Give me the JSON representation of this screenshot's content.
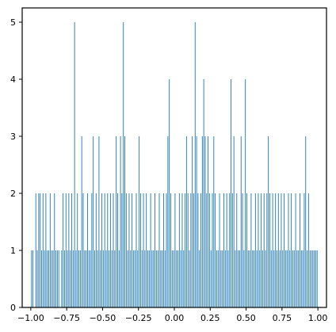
{
  "chart_data": {
    "type": "bar",
    "title": "",
    "xlabel": "",
    "ylabel": "",
    "xlim": [
      -1.06,
      1.06
    ],
    "ylim": [
      0,
      5.25
    ],
    "grid": false,
    "bar_color": "#1f77b4",
    "x_ticks": [
      {
        "value": -1.0,
        "label": "−1.00"
      },
      {
        "value": -0.75,
        "label": "−0.75"
      },
      {
        "value": -0.5,
        "label": "−0.50"
      },
      {
        "value": -0.25,
        "label": "−0.25"
      },
      {
        "value": 0.0,
        "label": "0.00"
      },
      {
        "value": 0.25,
        "label": "0.25"
      },
      {
        "value": 0.5,
        "label": "0.50"
      },
      {
        "value": 0.75,
        "label": "0.75"
      },
      {
        "value": 1.0,
        "label": "1.00"
      }
    ],
    "y_ticks": [
      {
        "value": 0,
        "label": "0"
      },
      {
        "value": 1,
        "label": "1"
      },
      {
        "value": 2,
        "label": "2"
      },
      {
        "value": 3,
        "label": "3"
      },
      {
        "value": 4,
        "label": "4"
      },
      {
        "value": 5,
        "label": "5"
      }
    ],
    "bar_width": 0.004,
    "bars": [
      {
        "x": -0.995,
        "h": 1
      },
      {
        "x": -0.985,
        "h": 1
      },
      {
        "x": -0.965,
        "h": 2
      },
      {
        "x": -0.955,
        "h": 1
      },
      {
        "x": -0.945,
        "h": 2
      },
      {
        "x": -0.935,
        "h": 2
      },
      {
        "x": -0.925,
        "h": 1
      },
      {
        "x": -0.915,
        "h": 2
      },
      {
        "x": -0.905,
        "h": 1
      },
      {
        "x": -0.895,
        "h": 2
      },
      {
        "x": -0.885,
        "h": 1
      },
      {
        "x": -0.875,
        "h": 1
      },
      {
        "x": -0.865,
        "h": 2
      },
      {
        "x": -0.855,
        "h": 1
      },
      {
        "x": -0.845,
        "h": 1
      },
      {
        "x": -0.835,
        "h": 2
      },
      {
        "x": -0.825,
        "h": 1
      },
      {
        "x": -0.815,
        "h": 1
      },
      {
        "x": -0.805,
        "h": 1
      },
      {
        "x": -0.785,
        "h": 1
      },
      {
        "x": -0.775,
        "h": 2
      },
      {
        "x": -0.765,
        "h": 1
      },
      {
        "x": -0.755,
        "h": 2
      },
      {
        "x": -0.745,
        "h": 1
      },
      {
        "x": -0.735,
        "h": 2
      },
      {
        "x": -0.725,
        "h": 1
      },
      {
        "x": -0.715,
        "h": 2
      },
      {
        "x": -0.705,
        "h": 1
      },
      {
        "x": -0.695,
        "h": 5
      },
      {
        "x": -0.685,
        "h": 1
      },
      {
        "x": -0.675,
        "h": 2
      },
      {
        "x": -0.665,
        "h": 1
      },
      {
        "x": -0.655,
        "h": 1
      },
      {
        "x": -0.645,
        "h": 3
      },
      {
        "x": -0.635,
        "h": 2
      },
      {
        "x": -0.625,
        "h": 1
      },
      {
        "x": -0.615,
        "h": 1
      },
      {
        "x": -0.605,
        "h": 2
      },
      {
        "x": -0.595,
        "h": 1
      },
      {
        "x": -0.585,
        "h": 1
      },
      {
        "x": -0.575,
        "h": 2
      },
      {
        "x": -0.565,
        "h": 3
      },
      {
        "x": -0.555,
        "h": 1
      },
      {
        "x": -0.545,
        "h": 2
      },
      {
        "x": -0.535,
        "h": 1
      },
      {
        "x": -0.525,
        "h": 3
      },
      {
        "x": -0.515,
        "h": 1
      },
      {
        "x": -0.505,
        "h": 2
      },
      {
        "x": -0.495,
        "h": 1
      },
      {
        "x": -0.485,
        "h": 2
      },
      {
        "x": -0.475,
        "h": 1
      },
      {
        "x": -0.465,
        "h": 2
      },
      {
        "x": -0.455,
        "h": 1
      },
      {
        "x": -0.445,
        "h": 2
      },
      {
        "x": -0.435,
        "h": 1
      },
      {
        "x": -0.425,
        "h": 2
      },
      {
        "x": -0.415,
        "h": 1
      },
      {
        "x": -0.405,
        "h": 3
      },
      {
        "x": -0.395,
        "h": 2
      },
      {
        "x": -0.385,
        "h": 1
      },
      {
        "x": -0.375,
        "h": 3
      },
      {
        "x": -0.365,
        "h": 2
      },
      {
        "x": -0.355,
        "h": 5
      },
      {
        "x": -0.345,
        "h": 3
      },
      {
        "x": -0.335,
        "h": 2
      },
      {
        "x": -0.325,
        "h": 1
      },
      {
        "x": -0.315,
        "h": 2
      },
      {
        "x": -0.305,
        "h": 1
      },
      {
        "x": -0.295,
        "h": 2
      },
      {
        "x": -0.285,
        "h": 1
      },
      {
        "x": -0.275,
        "h": 1
      },
      {
        "x": -0.265,
        "h": 2
      },
      {
        "x": -0.255,
        "h": 1
      },
      {
        "x": -0.245,
        "h": 3
      },
      {
        "x": -0.235,
        "h": 2
      },
      {
        "x": -0.225,
        "h": 1
      },
      {
        "x": -0.215,
        "h": 2
      },
      {
        "x": -0.205,
        "h": 1
      },
      {
        "x": -0.195,
        "h": 2
      },
      {
        "x": -0.185,
        "h": 1
      },
      {
        "x": -0.175,
        "h": 1
      },
      {
        "x": -0.165,
        "h": 2
      },
      {
        "x": -0.155,
        "h": 1
      },
      {
        "x": -0.145,
        "h": 1
      },
      {
        "x": -0.135,
        "h": 2
      },
      {
        "x": -0.125,
        "h": 1
      },
      {
        "x": -0.115,
        "h": 1
      },
      {
        "x": -0.105,
        "h": 2
      },
      {
        "x": -0.095,
        "h": 1
      },
      {
        "x": -0.085,
        "h": 1
      },
      {
        "x": -0.075,
        "h": 2
      },
      {
        "x": -0.065,
        "h": 1
      },
      {
        "x": -0.055,
        "h": 2
      },
      {
        "x": -0.045,
        "h": 3
      },
      {
        "x": -0.035,
        "h": 4
      },
      {
        "x": -0.025,
        "h": 2
      },
      {
        "x": -0.015,
        "h": 1
      },
      {
        "x": -0.005,
        "h": 1
      },
      {
        "x": 0.005,
        "h": 2
      },
      {
        "x": 0.015,
        "h": 1
      },
      {
        "x": 0.025,
        "h": 1
      },
      {
        "x": 0.035,
        "h": 2
      },
      {
        "x": 0.045,
        "h": 1
      },
      {
        "x": 0.055,
        "h": 2
      },
      {
        "x": 0.065,
        "h": 1
      },
      {
        "x": 0.075,
        "h": 2
      },
      {
        "x": 0.085,
        "h": 3
      },
      {
        "x": 0.095,
        "h": 2
      },
      {
        "x": 0.105,
        "h": 1
      },
      {
        "x": 0.115,
        "h": 2
      },
      {
        "x": 0.125,
        "h": 3
      },
      {
        "x": 0.135,
        "h": 2
      },
      {
        "x": 0.145,
        "h": 5
      },
      {
        "x": 0.155,
        "h": 3
      },
      {
        "x": 0.165,
        "h": 2
      },
      {
        "x": 0.175,
        "h": 1
      },
      {
        "x": 0.185,
        "h": 2
      },
      {
        "x": 0.195,
        "h": 3
      },
      {
        "x": 0.205,
        "h": 4
      },
      {
        "x": 0.215,
        "h": 3
      },
      {
        "x": 0.225,
        "h": 2
      },
      {
        "x": 0.235,
        "h": 3
      },
      {
        "x": 0.245,
        "h": 2
      },
      {
        "x": 0.255,
        "h": 1
      },
      {
        "x": 0.265,
        "h": 2
      },
      {
        "x": 0.275,
        "h": 3
      },
      {
        "x": 0.285,
        "h": 2
      },
      {
        "x": 0.295,
        "h": 1
      },
      {
        "x": 0.305,
        "h": 1
      },
      {
        "x": 0.315,
        "h": 2
      },
      {
        "x": 0.325,
        "h": 1
      },
      {
        "x": 0.335,
        "h": 1
      },
      {
        "x": 0.345,
        "h": 2
      },
      {
        "x": 0.355,
        "h": 1
      },
      {
        "x": 0.365,
        "h": 2
      },
      {
        "x": 0.375,
        "h": 1
      },
      {
        "x": 0.385,
        "h": 2
      },
      {
        "x": 0.395,
        "h": 4
      },
      {
        "x": 0.405,
        "h": 2
      },
      {
        "x": 0.415,
        "h": 3
      },
      {
        "x": 0.425,
        "h": 1
      },
      {
        "x": 0.435,
        "h": 2
      },
      {
        "x": 0.445,
        "h": 1
      },
      {
        "x": 0.455,
        "h": 1
      },
      {
        "x": 0.465,
        "h": 3
      },
      {
        "x": 0.475,
        "h": 2
      },
      {
        "x": 0.485,
        "h": 1
      },
      {
        "x": 0.495,
        "h": 4
      },
      {
        "x": 0.505,
        "h": 2
      },
      {
        "x": 0.515,
        "h": 1
      },
      {
        "x": 0.525,
        "h": 1
      },
      {
        "x": 0.535,
        "h": 2
      },
      {
        "x": 0.545,
        "h": 1
      },
      {
        "x": 0.555,
        "h": 1
      },
      {
        "x": 0.565,
        "h": 2
      },
      {
        "x": 0.575,
        "h": 1
      },
      {
        "x": 0.585,
        "h": 2
      },
      {
        "x": 0.595,
        "h": 1
      },
      {
        "x": 0.605,
        "h": 2
      },
      {
        "x": 0.615,
        "h": 1
      },
      {
        "x": 0.625,
        "h": 2
      },
      {
        "x": 0.635,
        "h": 1
      },
      {
        "x": 0.645,
        "h": 2
      },
      {
        "x": 0.655,
        "h": 3
      },
      {
        "x": 0.665,
        "h": 2
      },
      {
        "x": 0.675,
        "h": 1
      },
      {
        "x": 0.685,
        "h": 2
      },
      {
        "x": 0.695,
        "h": 1
      },
      {
        "x": 0.705,
        "h": 2
      },
      {
        "x": 0.715,
        "h": 1
      },
      {
        "x": 0.725,
        "h": 2
      },
      {
        "x": 0.735,
        "h": 1
      },
      {
        "x": 0.745,
        "h": 2
      },
      {
        "x": 0.755,
        "h": 1
      },
      {
        "x": 0.765,
        "h": 2
      },
      {
        "x": 0.775,
        "h": 1
      },
      {
        "x": 0.785,
        "h": 1
      },
      {
        "x": 0.795,
        "h": 2
      },
      {
        "x": 0.805,
        "h": 1
      },
      {
        "x": 0.815,
        "h": 2
      },
      {
        "x": 0.825,
        "h": 1
      },
      {
        "x": 0.835,
        "h": 1
      },
      {
        "x": 0.845,
        "h": 2
      },
      {
        "x": 0.855,
        "h": 1
      },
      {
        "x": 0.865,
        "h": 1
      },
      {
        "x": 0.875,
        "h": 2
      },
      {
        "x": 0.885,
        "h": 1
      },
      {
        "x": 0.895,
        "h": 1
      },
      {
        "x": 0.905,
        "h": 2
      },
      {
        "x": 0.915,
        "h": 3
      },
      {
        "x": 0.925,
        "h": 1
      },
      {
        "x": 0.935,
        "h": 2
      },
      {
        "x": 0.945,
        "h": 1
      },
      {
        "x": 0.955,
        "h": 1
      },
      {
        "x": 0.965,
        "h": 1
      },
      {
        "x": 0.975,
        "h": 1
      },
      {
        "x": 0.985,
        "h": 1
      },
      {
        "x": 0.995,
        "h": 1
      }
    ]
  }
}
